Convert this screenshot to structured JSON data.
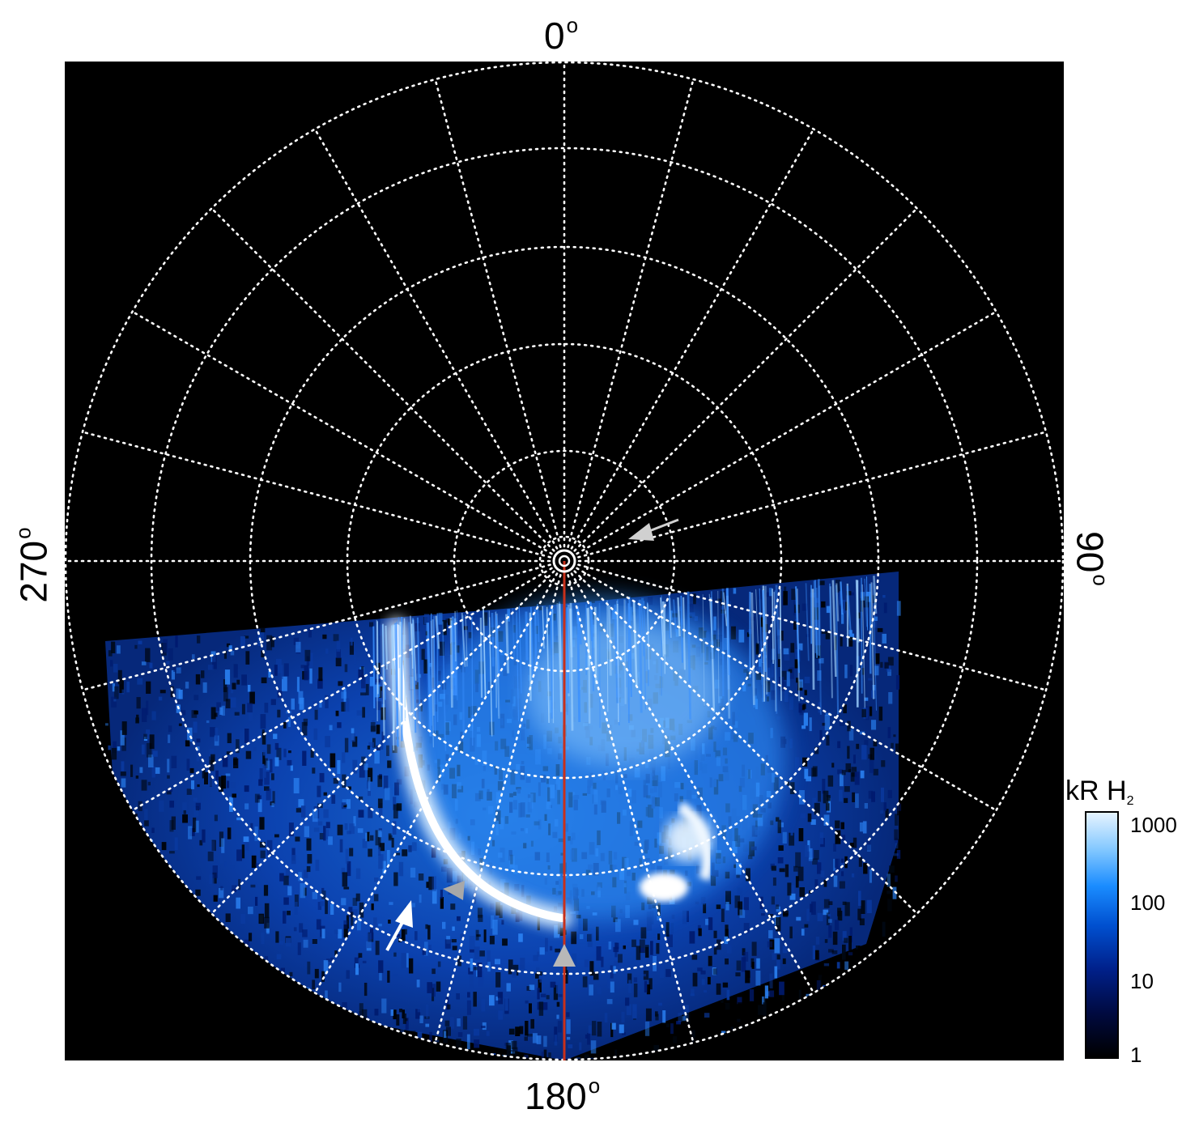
{
  "axis_labels": {
    "top": "0",
    "bottom": "180",
    "left": "270",
    "right": "90",
    "degree_symbol": "o"
  },
  "colorbar": {
    "unit": "kR H",
    "unit_subscript": "2",
    "ticks": [
      "1000",
      "100",
      "10",
      "1"
    ],
    "scale": "log"
  },
  "colors": {
    "background": "#000000",
    "grid": "#ffffff",
    "meridian_line": "#c8301a",
    "emission_low": "#001a6e",
    "emission_mid": "#1a7fff",
    "emission_high": "#f0f8ff",
    "arrow_white": "#ffffff",
    "arrow_grey": "#b0b0b0"
  }
}
